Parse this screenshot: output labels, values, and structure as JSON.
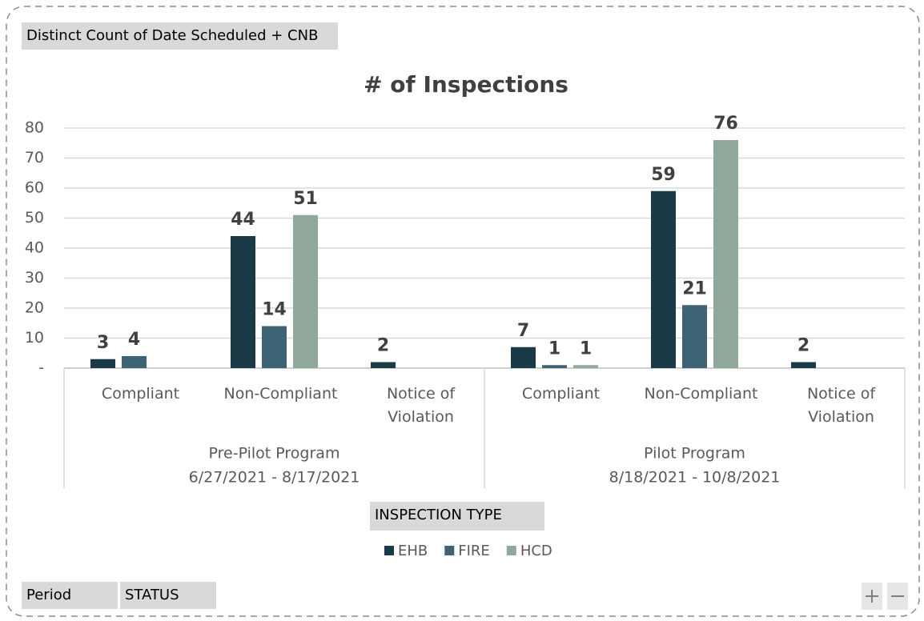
{
  "field_button": "Distinct Count of Date Scheduled + CNB",
  "legend_button": "INSPECTION TYPE",
  "axis_buttons": [
    "Period",
    "STATUS"
  ],
  "chart_data": {
    "type": "bar",
    "title": "# of Inspections",
    "groups": [
      {
        "name": "Pre-Pilot Program",
        "range": "6/27/2021 - 8/17/2021"
      },
      {
        "name": "Pilot Program",
        "range": "8/18/2021 - 10/8/2021"
      }
    ],
    "categories": [
      "Compliant",
      "Non-Compliant",
      "Notice of Violation",
      "Compliant",
      "Non-Compliant",
      "Notice of Violation"
    ],
    "series": [
      {
        "name": "EHB",
        "color": "#1b3a48",
        "values": [
          3,
          44,
          2,
          7,
          59,
          2
        ]
      },
      {
        "name": "FIRE",
        "color": "#3e6374",
        "values": [
          4,
          14,
          null,
          1,
          21,
          null
        ]
      },
      {
        "name": "HCD",
        "color": "#91a99b",
        "values": [
          null,
          51,
          null,
          1,
          76,
          null
        ]
      }
    ],
    "ylim": [
      0,
      80
    ],
    "yticks": [
      {
        "value": 0,
        "label": "-"
      },
      10,
      20,
      30,
      40,
      50,
      60,
      70,
      80
    ],
    "grid": true,
    "legend": "bottom"
  }
}
